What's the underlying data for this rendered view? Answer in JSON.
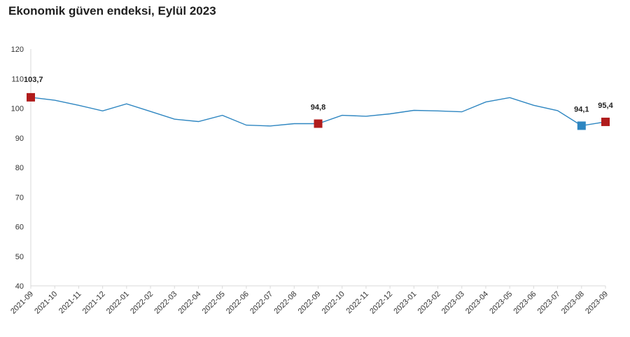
{
  "chart_data": {
    "type": "line",
    "title": "Ekonomik güven endeksi, Eylül 2023",
    "xlabel": "",
    "ylabel": "",
    "ylim": [
      40,
      120
    ],
    "yticks": [
      "40",
      "50",
      "60",
      "70",
      "80",
      "90",
      "100",
      "110",
      "120"
    ],
    "grid": false,
    "legend": "none",
    "categories": [
      "2021-09",
      "2021-10",
      "2021-11",
      "2021-12",
      "2022-01",
      "2022-02",
      "2022-03",
      "2022-04",
      "2022-05",
      "2022-06",
      "2022-07",
      "2022-08",
      "2022-09",
      "2022-10",
      "2022-11",
      "2022-12",
      "2023-01",
      "2023-02",
      "2023-03",
      "2023-04",
      "2023-05",
      "2023-06",
      "2023-07",
      "2023-08",
      "2023-09"
    ],
    "series": [
      {
        "color": "#2e86c1",
        "values": [
          103.7,
          102.7,
          101.0,
          99.1,
          101.5,
          98.9,
          96.3,
          95.5,
          97.6,
          94.3,
          94.0,
          94.8,
          94.8,
          97.6,
          97.3,
          98.1,
          99.3,
          99.1,
          98.8,
          102.1,
          103.6,
          101.0,
          99.2,
          94.1,
          95.4
        ]
      }
    ],
    "markers": [
      {
        "index": 0,
        "label": "103,7",
        "color": "#b01c1c"
      },
      {
        "index": 12,
        "label": "94,8",
        "color": "#b01c1c"
      },
      {
        "index": 23,
        "label": "94,1",
        "color": "#2e86c1"
      },
      {
        "index": 24,
        "label": "95,4",
        "color": "#b01c1c"
      }
    ]
  }
}
